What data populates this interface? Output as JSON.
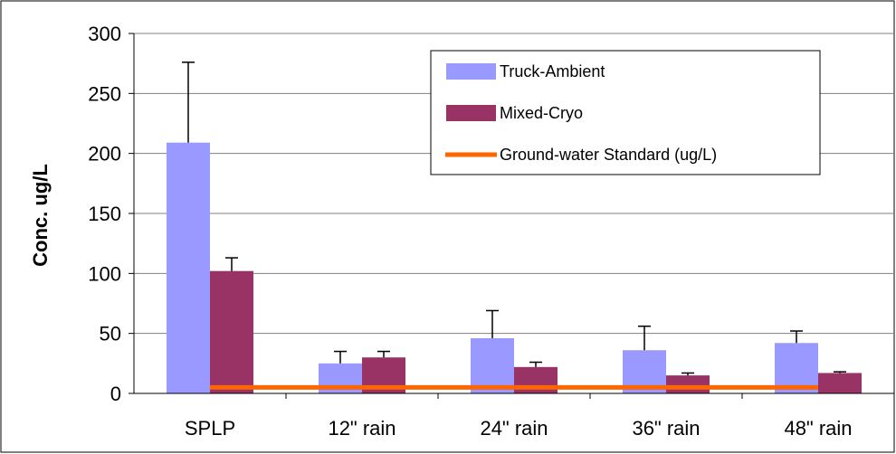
{
  "chart_data": {
    "type": "bar",
    "title": "",
    "xlabel": "",
    "ylabel": "Conc. ug/L",
    "ylim": [
      0,
      300
    ],
    "yticks": [
      0,
      50,
      100,
      150,
      200,
      250,
      300
    ],
    "categories": [
      "SPLP",
      "12\" rain",
      "24\" rain",
      "36\" rain",
      "48\" rain"
    ],
    "series": [
      {
        "name": "Truck-Ambient",
        "color": "#9999ff",
        "values": [
          209,
          25,
          46,
          36,
          42
        ],
        "error_upper": [
          67,
          10,
          23,
          20,
          10
        ]
      },
      {
        "name": "Mixed-Cryo",
        "color": "#993366",
        "values": [
          102,
          30,
          22,
          15,
          17
        ],
        "error_upper": [
          11,
          5,
          4,
          2,
          1
        ]
      }
    ],
    "reference_line": {
      "name": "Ground-water Standard (ug/L)",
      "value": 5,
      "color": "#ff6600"
    },
    "grid": true,
    "legend_position": "top-right"
  }
}
